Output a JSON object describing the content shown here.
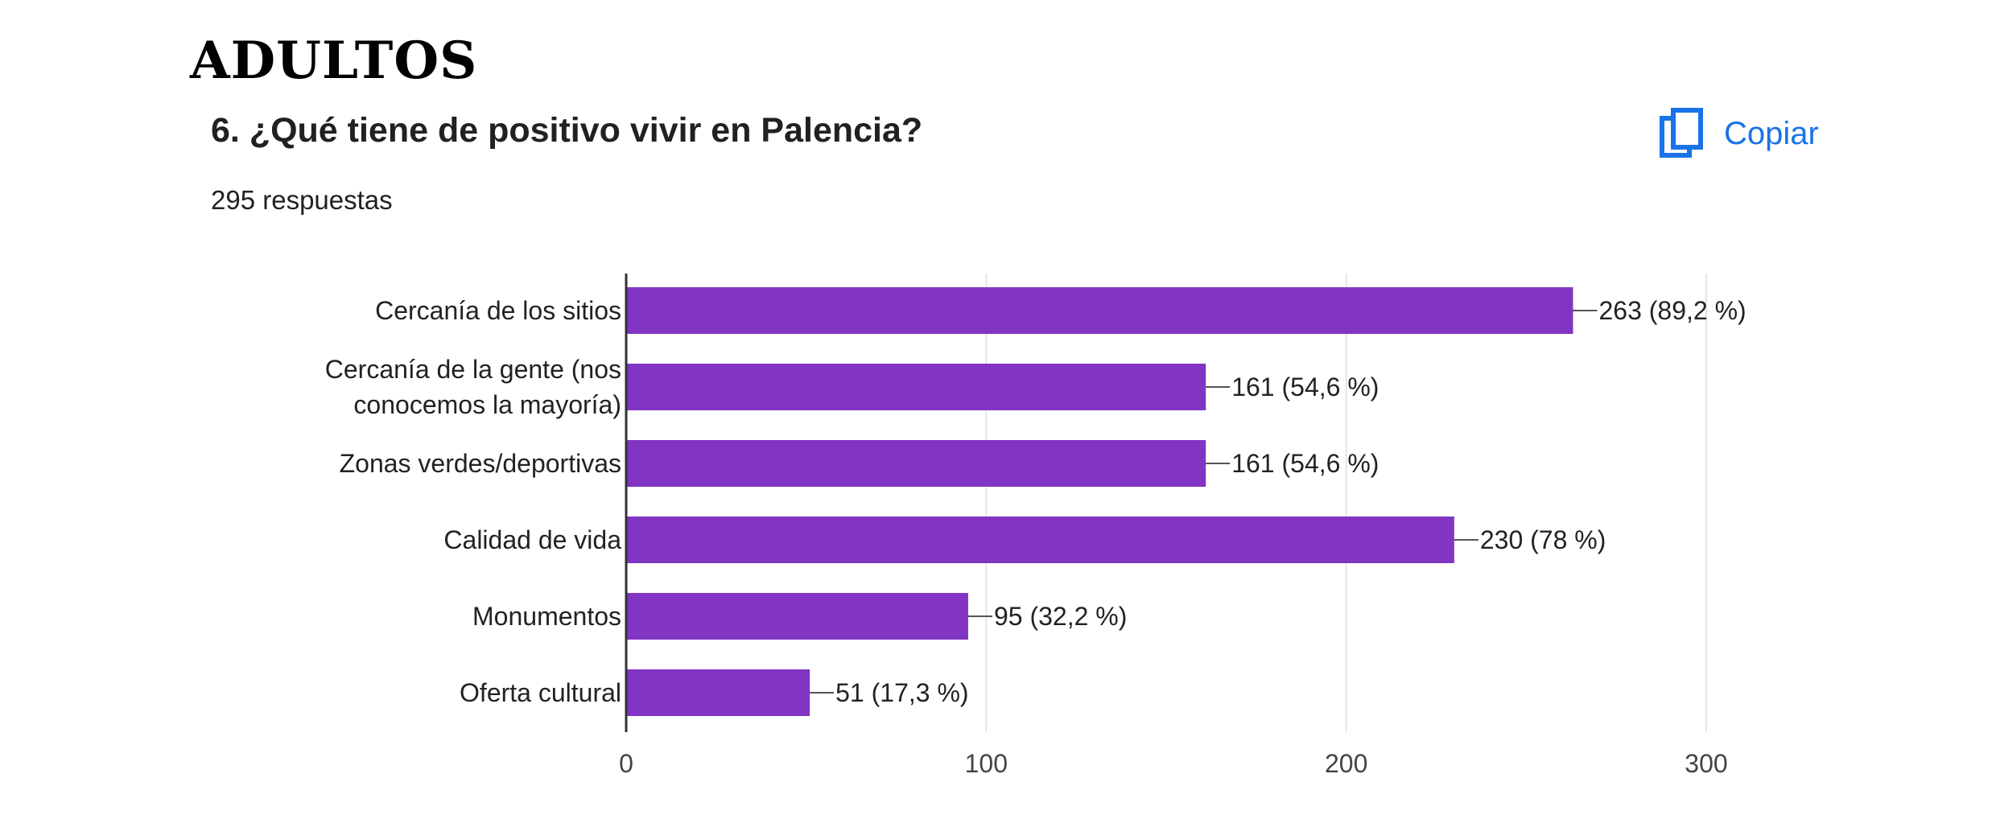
{
  "page": {
    "heading": "ADULTOS",
    "question": "6. ¿Qué tiene de positivo vivir en Palencia?",
    "responses": "295 respuestas",
    "copy_label": "Copiar",
    "copy_icon": "copy-icon"
  },
  "colors": {
    "bar": "#8234c2",
    "accent": "#1a73e8",
    "grid": "#e6e6e6",
    "axis": "#333333"
  },
  "chart_data": {
    "type": "bar",
    "orientation": "horizontal",
    "categories": [
      "Cercanía de los sitios",
      "Cercanía de la gente (nos conocemos la mayoría)",
      "Zonas verdes/deportivas",
      "Calidad de vida",
      "Monumentos",
      "Oferta cultural"
    ],
    "category_lines": [
      [
        "Cercanía de los sitios"
      ],
      [
        "Cercanía de la gente (nos",
        "conocemos la mayoría)"
      ],
      [
        "Zonas verdes/deportivas"
      ],
      [
        "Calidad de vida"
      ],
      [
        "Monumentos"
      ],
      [
        "Oferta cultural"
      ]
    ],
    "values": [
      263,
      161,
      161,
      230,
      95,
      51
    ],
    "data_labels": [
      "263 (89,2 %)",
      "161 (54,6 %)",
      "161 (54,6 %)",
      "230 (78 %)",
      "95 (32,2 %)",
      "51 (17,3 %)"
    ],
    "xlim": [
      0,
      300
    ],
    "xticks": [
      0,
      100,
      200,
      300
    ],
    "xtick_labels": [
      "0",
      "100",
      "200",
      "300"
    ],
    "grid": true,
    "legend": "none"
  }
}
